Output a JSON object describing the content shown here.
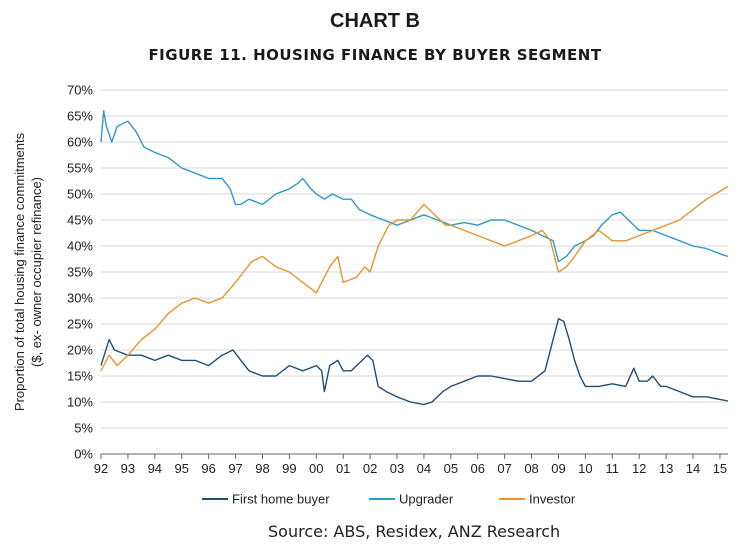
{
  "header": {
    "chart_label": "CHART B",
    "figure_title": "FIGURE 11. HOUSING FINANCE BY BUYER SEGMENT",
    "source": "Source: ABS, Residex, ANZ Research"
  },
  "colors": {
    "first_home_buyer": "#1f4e79",
    "upgrader": "#2e9ac9",
    "investor": "#e8942c",
    "grid": "#d9d9d9"
  },
  "chart_data": {
    "type": "line",
    "title": "FIGURE 11. HOUSING FINANCE BY BUYER SEGMENT",
    "ylabel_line1": "Proportion of total housing finance commitments",
    "ylabel_line2": "($, ex- owner occupier refinance)",
    "xlabel": "",
    "xlim": [
      92,
      115.3
    ],
    "ylim": [
      0,
      70
    ],
    "yticks": [
      0,
      5,
      10,
      15,
      20,
      25,
      30,
      35,
      40,
      45,
      50,
      55,
      60,
      65,
      70
    ],
    "ytick_labels": [
      "0%",
      "5%",
      "10%",
      "15%",
      "20%",
      "25%",
      "30%",
      "35%",
      "40%",
      "45%",
      "50%",
      "55%",
      "60%",
      "65%",
      "70%"
    ],
    "xticks": [
      92,
      93,
      94,
      95,
      96,
      97,
      98,
      99,
      100,
      101,
      102,
      103,
      104,
      105,
      106,
      107,
      108,
      109,
      110,
      111,
      112,
      113,
      114,
      115
    ],
    "xtick_labels": [
      "92",
      "93",
      "94",
      "95",
      "96",
      "97",
      "98",
      "99",
      "00",
      "01",
      "02",
      "03",
      "04",
      "05",
      "06",
      "07",
      "08",
      "09",
      "10",
      "11",
      "12",
      "13",
      "14",
      "15"
    ],
    "grid": "horizontal",
    "legend_position": "bottom",
    "series": [
      {
        "name": "First home buyer",
        "color": "#1f4e79",
        "x": [
          92.0,
          92.3,
          92.5,
          93.0,
          93.5,
          94.0,
          94.5,
          95.0,
          95.5,
          96.0,
          96.5,
          96.9,
          97.2,
          97.5,
          98.0,
          98.5,
          99.0,
          99.5,
          100.0,
          100.2,
          100.3,
          100.5,
          100.8,
          101.0,
          101.3,
          101.5,
          101.9,
          102.1,
          102.3,
          102.6,
          103.0,
          103.5,
          104.0,
          104.3,
          104.7,
          105.0,
          105.5,
          106.0,
          106.5,
          107.0,
          107.5,
          108.0,
          108.5,
          108.8,
          109.0,
          109.2,
          109.4,
          109.6,
          109.8,
          110.0,
          110.5,
          111.0,
          111.5,
          111.8,
          112.0,
          112.3,
          112.5,
          112.8,
          113.0,
          113.5,
          114.0,
          114.5,
          115.0,
          115.3
        ],
        "values": [
          17,
          22,
          20,
          19,
          19,
          18,
          19,
          18,
          18,
          17,
          19,
          20,
          18,
          16,
          15,
          15,
          17,
          16,
          17,
          16,
          12,
          17,
          18,
          16,
          16,
          17,
          19,
          18,
          13,
          12,
          11,
          10,
          9.5,
          10,
          12,
          13,
          14,
          15,
          15,
          14.5,
          14,
          14,
          16,
          22,
          26,
          25.5,
          22,
          18,
          15,
          13,
          13,
          13.5,
          13,
          16.5,
          14,
          14,
          15,
          13,
          13,
          12,
          11,
          11,
          10.5,
          10.2
        ]
      },
      {
        "name": "Upgrader",
        "color": "#2e9ac9",
        "x": [
          92.0,
          92.1,
          92.2,
          92.4,
          92.6,
          93.0,
          93.3,
          93.6,
          94.0,
          94.5,
          95.0,
          95.5,
          96.0,
          96.5,
          96.8,
          97.0,
          97.2,
          97.5,
          98.0,
          98.5,
          99.0,
          99.3,
          99.5,
          99.8,
          100.0,
          100.3,
          100.6,
          101.0,
          101.3,
          101.6,
          102.0,
          102.5,
          103.0,
          103.5,
          104.0,
          104.5,
          105.0,
          105.5,
          106.0,
          106.5,
          107.0,
          107.5,
          108.0,
          108.4,
          108.8,
          109.0,
          109.3,
          109.6,
          110.0,
          110.3,
          110.6,
          111.0,
          111.3,
          111.6,
          112.0,
          112.5,
          113.0,
          113.5,
          114.0,
          114.5,
          115.0,
          115.3
        ],
        "values": [
          60,
          66,
          63,
          60,
          63,
          64,
          62,
          59,
          58,
          57,
          55,
          54,
          53,
          53,
          51,
          48,
          48,
          49,
          48,
          50,
          51,
          52,
          53,
          51,
          50,
          49,
          50,
          49,
          49,
          47,
          46,
          45,
          44,
          45,
          46,
          45,
          44,
          44.5,
          44,
          45,
          45,
          44,
          43,
          42,
          41,
          37,
          38,
          40,
          41,
          42,
          44,
          46,
          46.5,
          45,
          43,
          43,
          42,
          41,
          40,
          39.5,
          38.5,
          38
        ]
      },
      {
        "name": "Investor",
        "color": "#e8942c",
        "x": [
          92.0,
          92.3,
          92.6,
          93.0,
          93.5,
          94.0,
          94.5,
          95.0,
          95.5,
          96.0,
          96.5,
          97.0,
          97.3,
          97.6,
          98.0,
          98.5,
          99.0,
          99.5,
          100.0,
          100.3,
          100.5,
          100.8,
          101.0,
          101.5,
          101.8,
          102.0,
          102.3,
          102.7,
          103.0,
          103.5,
          104.0,
          104.4,
          104.8,
          105.0,
          105.5,
          106.0,
          106.5,
          107.0,
          107.5,
          108.0,
          108.4,
          108.7,
          109.0,
          109.3,
          109.6,
          110.0,
          110.5,
          111.0,
          111.5,
          112.0,
          112.5,
          113.0,
          113.5,
          114.0,
          114.5,
          115.0,
          115.3
        ],
        "values": [
          16,
          19,
          17,
          19,
          22,
          24,
          27,
          29,
          30,
          29,
          30,
          33,
          35,
          37,
          38,
          36,
          35,
          33,
          31,
          34,
          36,
          38,
          33,
          34,
          36,
          35,
          40,
          44,
          45,
          45,
          48,
          46,
          44,
          44,
          43,
          42,
          41,
          40,
          41,
          42,
          43,
          41,
          35,
          36,
          38,
          41,
          43,
          41,
          41,
          42,
          43,
          44,
          45,
          47,
          49,
          50.5,
          51.5
        ]
      }
    ]
  }
}
